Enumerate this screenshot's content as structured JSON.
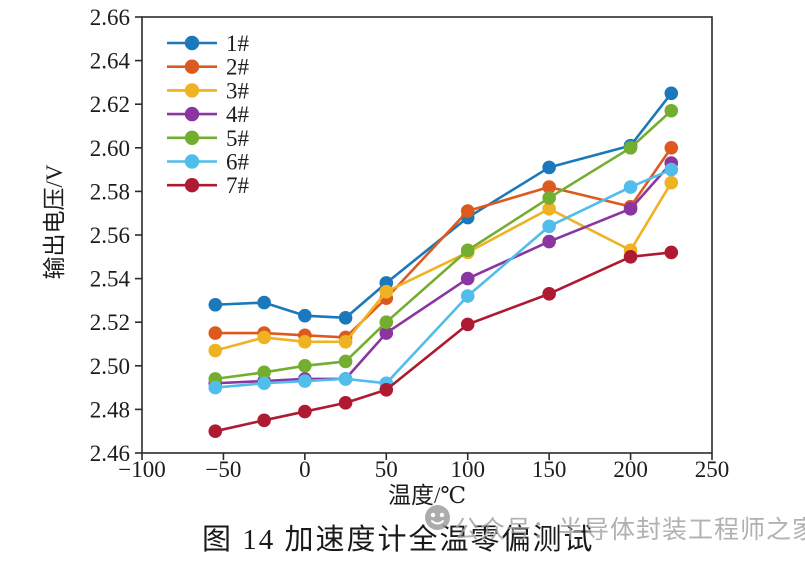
{
  "figure": {
    "caption": "图 14  加速度计全温零偏测试",
    "watermark_text": "公众号：半导体封装工程师之家",
    "watermark_color": "#a0a0a0"
  },
  "chart_data": {
    "type": "line",
    "title": "",
    "xlabel": "温度/℃",
    "ylabel": "输出电压/V",
    "xlim": [
      -100,
      250
    ],
    "ylim": [
      2.46,
      2.66
    ],
    "grid": false,
    "legend_position": "top-left-inside",
    "xticks": [
      -100,
      -50,
      0,
      50,
      100,
      150,
      200,
      250
    ],
    "xtick_labels": [
      "−100",
      "−50",
      "0",
      "50",
      "100",
      "150",
      "200",
      "250"
    ],
    "yticks": [
      2.46,
      2.48,
      2.5,
      2.52,
      2.54,
      2.56,
      2.58,
      2.6,
      2.62,
      2.64,
      2.66
    ],
    "ytick_labels": [
      "2.46",
      "2.48",
      "2.50",
      "2.52",
      "2.54",
      "2.56",
      "2.58",
      "2.60",
      "2.62",
      "2.64",
      "2.66"
    ],
    "x": [
      -55,
      -25,
      0,
      25,
      50,
      100,
      150,
      200,
      225
    ],
    "series": [
      {
        "name": "1#",
        "color": "#1b78ba",
        "values": [
          2.528,
          2.529,
          2.523,
          2.522,
          2.538,
          2.568,
          2.591,
          2.601,
          2.625
        ]
      },
      {
        "name": "2#",
        "color": "#dd5a1f",
        "values": [
          2.515,
          2.515,
          2.514,
          2.513,
          2.531,
          2.571,
          2.582,
          2.573,
          2.6
        ]
      },
      {
        "name": "3#",
        "color": "#efb223",
        "values": [
          2.507,
          2.513,
          2.511,
          2.511,
          2.534,
          2.552,
          2.572,
          2.553,
          2.584
        ]
      },
      {
        "name": "4#",
        "color": "#8a35a0",
        "values": [
          2.492,
          2.493,
          2.494,
          2.494,
          2.515,
          2.54,
          2.557,
          2.572,
          2.593
        ]
      },
      {
        "name": "5#",
        "color": "#74ae30",
        "values": [
          2.494,
          2.497,
          2.5,
          2.502,
          2.52,
          2.553,
          2.577,
          2.6,
          2.617
        ]
      },
      {
        "name": "6#",
        "color": "#50bdea",
        "values": [
          2.49,
          2.492,
          2.493,
          2.494,
          2.492,
          2.532,
          2.564,
          2.582,
          2.59
        ]
      },
      {
        "name": "7#",
        "color": "#ae1a31",
        "values": [
          2.47,
          2.475,
          2.479,
          2.483,
          2.489,
          2.519,
          2.533,
          2.55,
          2.552
        ]
      }
    ]
  }
}
